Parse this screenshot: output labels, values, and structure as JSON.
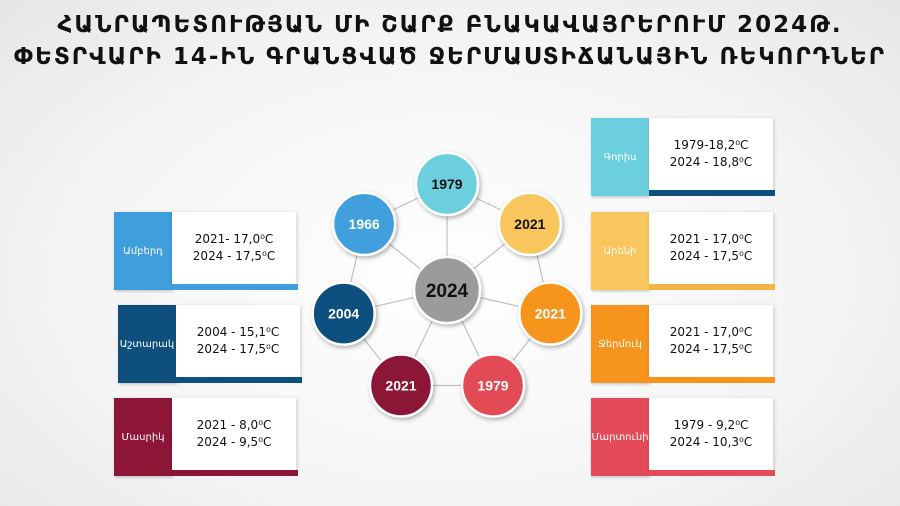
{
  "title": {
    "line1": "ՀԱՆՐԱՊԵՏՈՒԹՅԱՆ ՄԻ ՇԱՐՔ ԲՆԱԿԱՎԱՅՐԵՐՈՒՄ 2024Թ.",
    "line2": "ՓԵՏՐՎԱՐԻ 14-ԻՆ ԳՐԱՆՑՎԱԾ ՋԵՐՄԱՍՏԻՃԱՆԱՅԻՆ ՌԵԿՈՐԴՆԵՐ"
  },
  "center": {
    "label": "2024",
    "color": "#9b9b9b"
  },
  "nodes": [
    {
      "label": "1979",
      "color": "#6ccfde"
    },
    {
      "label": "2021",
      "color": "#f8c65c"
    },
    {
      "label": "2021",
      "color": "#f7941d"
    },
    {
      "label": "1979",
      "color": "#e24b57"
    },
    {
      "label": "2021",
      "color": "#8c1538"
    },
    {
      "label": "2004",
      "color": "#0e4f7e"
    },
    {
      "label": "1966",
      "color": "#3f9fdc"
    }
  ],
  "cards": [
    {
      "name": "Ամբերդ",
      "line1": "2021- 17,0⁰C",
      "line2": "2024 - 17,5⁰C",
      "tab_color": "#3f9fdc",
      "bar_color": "#3f9fdc"
    },
    {
      "name": "Աշտարակ",
      "line1": "2004 - 15,1⁰C",
      "line2": "2024 - 17,5⁰C",
      "tab_color": "#0e4f7e",
      "bar_color": "#0e4f7e"
    },
    {
      "name": "Մասրիկ",
      "line1": "2021 - 8,0⁰C",
      "line2": "2024 - 9,5⁰C",
      "tab_color": "#8c1538",
      "bar_color": "#8c1538"
    },
    {
      "name": "Գորիս",
      "line1": "1979-18,2⁰C",
      "line2": "2024 - 18,8⁰C",
      "tab_color": "#6ccfde",
      "bar_color": "#0e4f7e"
    },
    {
      "name": "Արենի",
      "line1": "2021 - 17,0⁰C",
      "line2": "2024 - 17,5⁰C",
      "tab_color": "#f8c65c",
      "bar_color": "#f2b544"
    },
    {
      "name": "Ջերմուկ",
      "line1": "2021 - 17,0⁰C",
      "line2": "2024 - 17,5⁰C",
      "tab_color": "#f7941d",
      "bar_color": "#f7941d"
    },
    {
      "name": "Մարտունի",
      "line1": "1979 - 9,2⁰C",
      "line2": "2024 - 10,3⁰C",
      "tab_color": "#e24b57",
      "bar_color": "#e24b57"
    }
  ]
}
